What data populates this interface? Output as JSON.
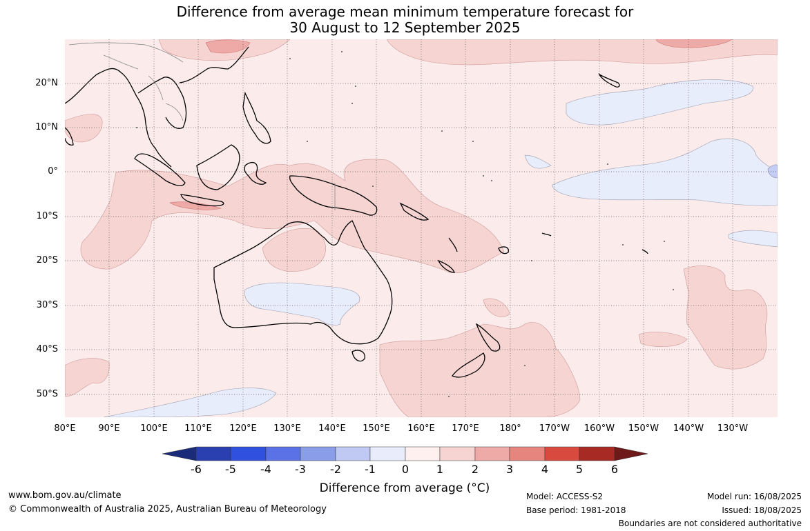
{
  "title": {
    "line1": "Difference from average mean minimum temperature forecast for",
    "line2": "30 August to 12 September 2025"
  },
  "map": {
    "lat_labels": [
      "20°N",
      "10°N",
      "0°",
      "10°S",
      "20°S",
      "30°S",
      "40°S",
      "50°S"
    ],
    "lon_labels": [
      "80°E",
      "90°E",
      "100°E",
      "110°E",
      "120°E",
      "130°E",
      "140°E",
      "150°E",
      "160°E",
      "170°E",
      "180°",
      "170°W",
      "160°W",
      "150°W",
      "140°W",
      "130°W"
    ],
    "colors": {
      "ocean_0_1": "#fbeceb",
      "pos_1_2": "#f5d4d2",
      "pos_2_3": "#eeaaa7",
      "neg_0_1": "#e8edfc",
      "neg_1_2": "#c4cdf3",
      "coast": "#000000",
      "borders": "#888888",
      "grid": "#555555"
    }
  },
  "colorbar": {
    "ticks": [
      "-6",
      "-5",
      "-4",
      "-3",
      "-2",
      "-1",
      "0",
      "1",
      "2",
      "3",
      "4",
      "5",
      "6"
    ],
    "colors": [
      "#1a2b7a",
      "#2a40b0",
      "#3050e0",
      "#5a72e6",
      "#8a9de9",
      "#c0c9f3",
      "#e8ecfb",
      "#fdf0ee",
      "#f5d4d2",
      "#eeaaa6",
      "#e5857d",
      "#d84a3e",
      "#a82a24",
      "#6e1a1a"
    ],
    "label": "Difference from average (°C)"
  },
  "footer": {
    "website": "www.bom.gov.au/climate",
    "copyright": "© Commonwealth of Australia 2025, Australian Bureau of Meteorology",
    "model": "Model: ACCESS-S2",
    "base_period": "Base period: 1981-2018",
    "model_run": "Model run: 16/08/2025",
    "issued": "Issued: 18/08/2025",
    "disclaimer": "Boundaries are not considered authoritative"
  }
}
